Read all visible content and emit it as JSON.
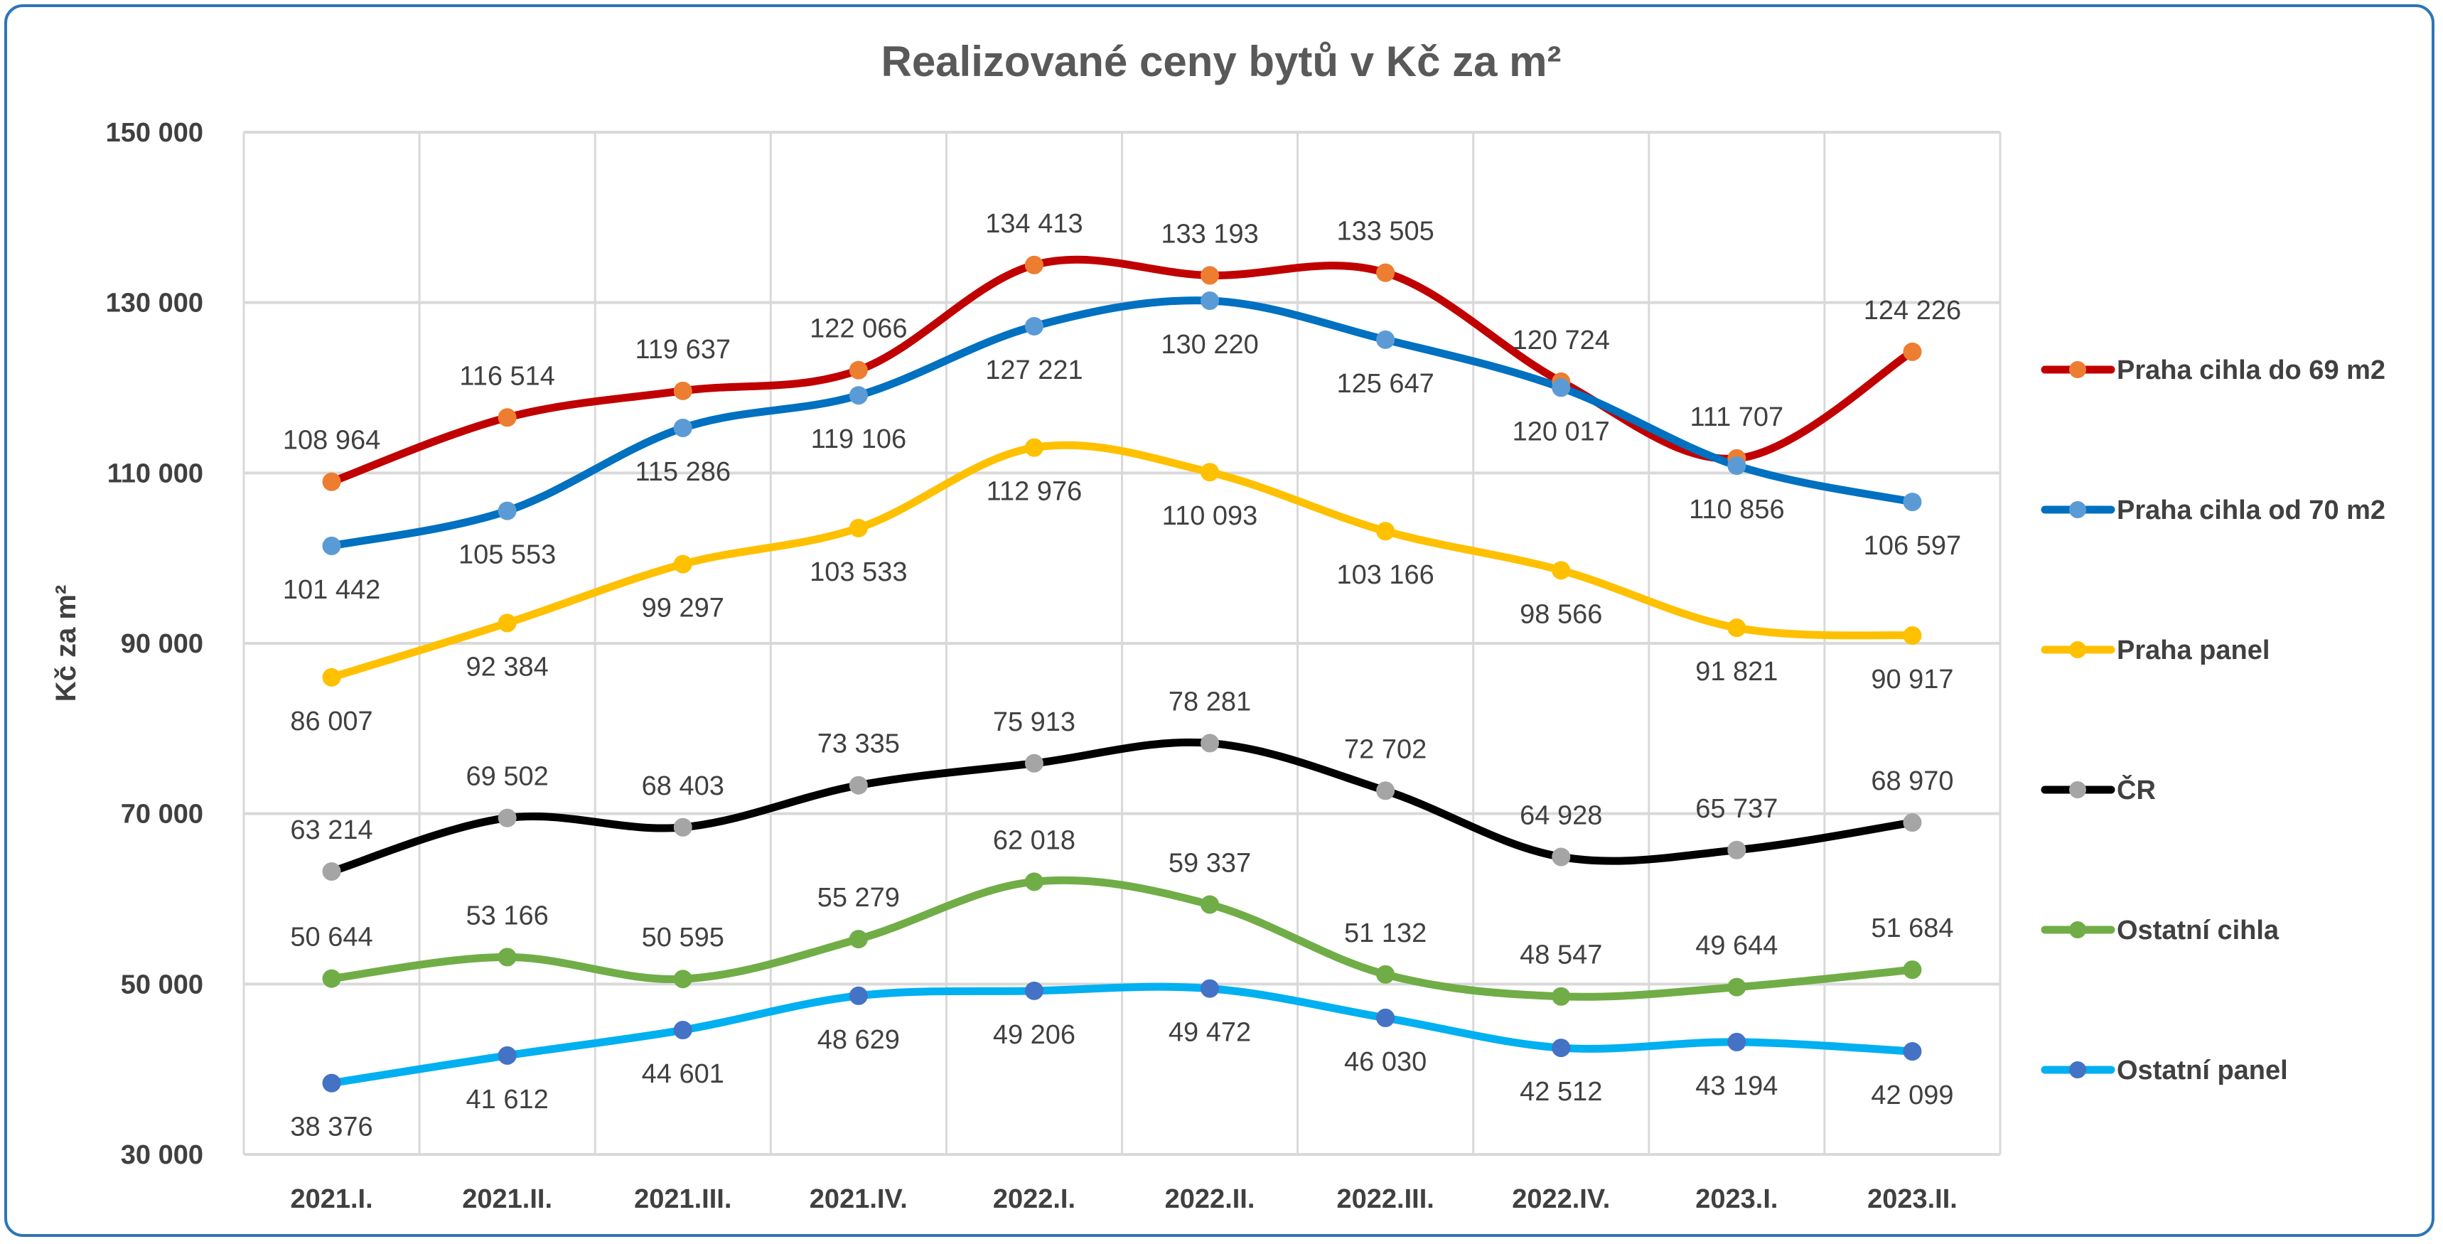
{
  "chart_data": {
    "type": "line",
    "title": "Realizované ceny bytů v Kč za m²",
    "xlabel": "",
    "ylabel": "Kč za m²",
    "ylim": [
      30000,
      150000
    ],
    "yticks": [
      30000,
      50000,
      70000,
      90000,
      110000,
      130000,
      150000
    ],
    "ytick_labels": [
      "30 000",
      "50 000",
      "70 000",
      "90 000",
      "110 000",
      "130 000",
      "150 000"
    ],
    "grid": true,
    "smooth": true,
    "legend_position": "right",
    "categories": [
      "2021.I.",
      "2021.II.",
      "2021.III.",
      "2021.IV.",
      "2022.I.",
      "2022.II.",
      "2022.III.",
      "2022.IV.",
      "2023.I.",
      "2023.II."
    ],
    "series": [
      {
        "name": "Praha cihla do 69 m2",
        "line_color": "#c00000",
        "marker_color": "#ed7d31",
        "values": [
          108964,
          116514,
          119637,
          122066,
          134413,
          133193,
          133505,
          120724,
          111707,
          124226
        ],
        "labels": [
          "108 964",
          "116 514",
          "119 637",
          "122 066",
          "134 413",
          "133 193",
          "133 505",
          "120 724",
          "111 707",
          "124 226"
        ],
        "label_side": [
          "above",
          "above",
          "above",
          "above",
          "above",
          "above",
          "above",
          "above",
          "above",
          "above"
        ]
      },
      {
        "name": "Praha cihla od 70 m2",
        "line_color": "#0070c0",
        "marker_color": "#5b9bd5",
        "values": [
          101442,
          105553,
          115286,
          119106,
          127221,
          130220,
          125647,
          120017,
          110856,
          106597
        ],
        "labels": [
          "101 442",
          "105 553",
          "115 286",
          "119 106",
          "127 221",
          "130 220",
          "125 647",
          "120 017",
          "110 856",
          "106 597"
        ],
        "label_side": [
          "below",
          "below",
          "below",
          "below",
          "below",
          "below",
          "below",
          "below",
          "below",
          "below"
        ]
      },
      {
        "name": "Praha panel",
        "line_color": "#ffc000",
        "marker_color": "#ffc000",
        "values": [
          86007,
          92384,
          99297,
          103533,
          112976,
          110093,
          103166,
          98566,
          91821,
          90917
        ],
        "labels": [
          "86 007",
          "92 384",
          "99 297",
          "103 533",
          "112 976",
          "110 093",
          "103 166",
          "98 566",
          "91 821",
          "90 917"
        ],
        "label_side": [
          "below",
          "below",
          "below",
          "below",
          "below",
          "below",
          "below",
          "below",
          "below",
          "below"
        ]
      },
      {
        "name": "ČR",
        "line_color": "#000000",
        "marker_color": "#a5a5a5",
        "values": [
          63214,
          69502,
          68403,
          73335,
          75913,
          78281,
          72702,
          64928,
          65737,
          68970
        ],
        "labels": [
          "63 214",
          "69 502",
          "68 403",
          "73 335",
          "75 913",
          "78 281",
          "72 702",
          "64 928",
          "65 737",
          "68 970"
        ],
        "label_side": [
          "above",
          "above",
          "above",
          "above",
          "above",
          "above",
          "above",
          "above",
          "above",
          "above"
        ]
      },
      {
        "name": "Ostatní cihla",
        "line_color": "#70ad47",
        "marker_color": "#70ad47",
        "values": [
          50644,
          53166,
          50595,
          55279,
          62018,
          59337,
          51132,
          48547,
          49644,
          51684
        ],
        "labels": [
          "50 644",
          "53 166",
          "50 595",
          "55 279",
          "62 018",
          "59 337",
          "51 132",
          "48 547",
          "49 644",
          "51 684"
        ],
        "label_side": [
          "above",
          "above",
          "above",
          "above",
          "above",
          "above",
          "above",
          "above",
          "above",
          "above"
        ]
      },
      {
        "name": "Ostatní panel",
        "line_color": "#00b0f0",
        "marker_color": "#4472c4",
        "values": [
          38376,
          41612,
          44601,
          48629,
          49206,
          49472,
          46030,
          42512,
          43194,
          42099
        ],
        "labels": [
          "38 376",
          "41 612",
          "44 601",
          "48 629",
          "49 206",
          "49 472",
          "46 030",
          "42 512",
          "43 194",
          "42 099"
        ],
        "label_side": [
          "below",
          "below",
          "below",
          "below",
          "below",
          "below",
          "below",
          "below",
          "below",
          "below"
        ]
      }
    ]
  }
}
